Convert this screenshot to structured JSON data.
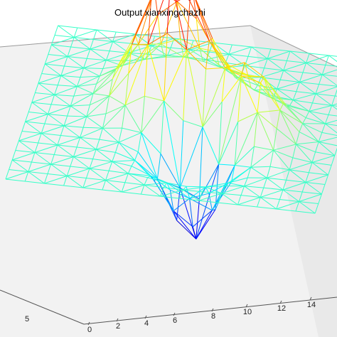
{
  "chart_data": {
    "type": "surface",
    "title": "Output xianxingchazhi",
    "xlabel": "",
    "ylabel": "",
    "zlabel": "",
    "x_ticks": [
      "0",
      "2",
      "4",
      "6",
      "8",
      "10",
      "12",
      "14"
    ],
    "y_ticks": [
      "5"
    ],
    "grid": "on",
    "colormap": "jet",
    "representation": "triangulated wireframe mesh",
    "features": [
      {
        "kind": "peak",
        "description": "tall central-left peak, highest point of the surface"
      },
      {
        "kind": "peak",
        "description": "secondary peak to the right of centre"
      },
      {
        "kind": "trough",
        "description": "deep trough in the front-centre"
      }
    ]
  },
  "colors": {
    "background": "#ffffff",
    "axes_plane": "#f2f2f2",
    "axes_plane_right": "#e8e8e8",
    "edges": "#9a9a9a",
    "colormap_low": "#00008f",
    "colormap_mid": "#00ffff",
    "colormap_high_yellow": "#ffff00",
    "colormap_top": "#800000"
  }
}
